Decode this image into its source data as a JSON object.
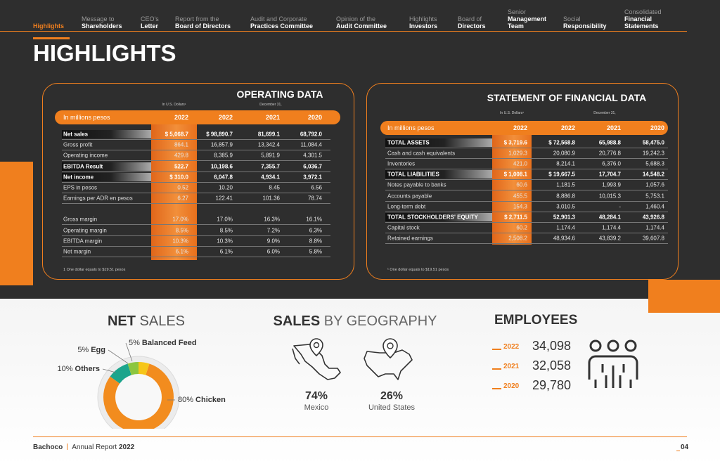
{
  "nav": {
    "items": [
      [
        "Highlights"
      ],
      [
        "Message to",
        "Shareholders"
      ],
      [
        "CEO's",
        "Letter"
      ],
      [
        "Report from the",
        "Board of Directors"
      ],
      [
        "Audit and Corporate",
        "Practices Committee"
      ],
      [
        "Opinion of the",
        "Audit Committee"
      ],
      [
        "Highlights",
        "Investors"
      ],
      [
        "Board of",
        "Directors"
      ],
      [
        "Senior",
        "Management",
        "Team"
      ],
      [
        "Social",
        "Responsibility"
      ],
      [
        "Consolidated",
        "Financial",
        "Statements"
      ]
    ]
  },
  "page_title": "HIGHLIGHTS",
  "operating_data": {
    "title": "OPERATING DATA",
    "usd_note": "In U.S. Dollars¹",
    "date_note": "December 31,",
    "header": [
      "In millions pesos",
      "2022",
      "2022",
      "2021",
      "2020"
    ],
    "groups": [
      [
        {
          "label": "Net sales",
          "cells": [
            "$ 5,068.7",
            "$ 98,890.7",
            "81,699.1",
            "68,792.0"
          ],
          "bold": true
        },
        {
          "label": "Gross profit",
          "cells": [
            "864.1",
            "16,857.9",
            "13,342.4",
            "11,084.4"
          ]
        },
        {
          "label": "Operating income",
          "cells": [
            "429.8",
            "8,385.9",
            "5,891.9",
            "4,301.5"
          ]
        },
        {
          "label": "EBITDA Result",
          "cells": [
            "522.7",
            "10,198.6",
            "7,355.7",
            "6,036.7"
          ],
          "bold": true
        },
        {
          "label": "Net income",
          "cells": [
            "$ 310.0",
            "6,047.8",
            "4,934.1",
            "3,972.1"
          ],
          "bold": true
        },
        {
          "label": "EPS in pesos",
          "cells": [
            "0.52",
            "10.20",
            "8.45",
            "6.56"
          ]
        },
        {
          "label": "Earnings per ADR en pesos",
          "cells": [
            "6.27",
            "122.41",
            "101.36",
            "78.74"
          ]
        }
      ],
      [
        {
          "label": "Gross margin",
          "cells": [
            "17.0%",
            "17.0%",
            "16.3%",
            "16.1%"
          ]
        },
        {
          "label": "Operating margin",
          "cells": [
            "8.5%",
            "8.5%",
            "7.2%",
            "6.3%"
          ]
        },
        {
          "label": "EBITDA margin",
          "cells": [
            "10.3%",
            "10.3%",
            "9.0%",
            "8.8%"
          ]
        },
        {
          "label": "Net margin",
          "cells": [
            "6.1%",
            "6.1%",
            "6.0%",
            "5.8%"
          ]
        }
      ]
    ],
    "footnote": "1 One dollar equals to $19.51 pesos"
  },
  "financial_data": {
    "title": "STATEMENT OF FINANCIAL DATA",
    "usd_note": "In U.S. Dollars¹",
    "date_note": "December 31,",
    "header": [
      "In millions pesos",
      "2022",
      "2022",
      "2021",
      "2020"
    ],
    "groups": [
      [
        {
          "label": "TOTAL ASSETS",
          "cells": [
            "$ 3,719.6",
            "$ 72,568.8",
            "65,988.8",
            "58,475.0"
          ],
          "bold": true
        },
        {
          "label": "Cash and cash equivalents",
          "cells": [
            "1,029.3",
            "20,080.9",
            "20,776.8",
            "19,242.3"
          ]
        },
        {
          "label": "Inventories",
          "cells": [
            "421.0",
            "8,214.1",
            "6,376.0",
            "5,688.3"
          ]
        },
        {
          "label": "TOTAL LIABILITIES",
          "cells": [
            "$ 1,008.1",
            "$ 19,667.5",
            "17,704.7",
            "14,548.2"
          ],
          "bold": true
        },
        {
          "label": "Notes payable to banks",
          "cells": [
            "60.6",
            "1,181.5",
            "1,993.9",
            "1,057.6"
          ]
        },
        {
          "label": "Accounts payable",
          "cells": [
            "455.5",
            "8,886.8",
            "10,015.3",
            "5,753.1"
          ]
        },
        {
          "label": "Long-term debt",
          "cells": [
            "154.3",
            "3,010.5",
            "-",
            "1,460.4"
          ]
        },
        {
          "label": "TOTAL STOCKHOLDERS' EQUITY",
          "cells": [
            "$ 2,711.5",
            "52,901.3",
            "48,284.1",
            "43,926.8"
          ],
          "bold": true
        },
        {
          "label": "Capital stock",
          "cells": [
            "60.2",
            "1,174.4",
            "1,174.4",
            "1,174.4"
          ]
        },
        {
          "label": "Retained earnings",
          "cells": [
            "2,508.2",
            "48,934.6",
            "43,839.2",
            "39,607.8"
          ]
        }
      ]
    ],
    "footnote": "¹ One dollar equals to $19.51 pesos"
  },
  "net_sales": {
    "type": "pie",
    "title_bold": "NET",
    "title_light": "SALES",
    "labels": [
      "Chicken",
      "Others",
      "Egg",
      "Balanced Feed"
    ],
    "values": [
      80,
      10,
      5,
      5
    ],
    "value_labels": [
      "80%",
      "10%",
      "5%",
      "5%"
    ],
    "colors": [
      "#f28c1e",
      "#1ba58c",
      "#8cc63f",
      "#f6c619"
    ]
  },
  "sales_by_geography": {
    "title_bold": "SALES",
    "title_light": "BY GEOGRAPHY",
    "regions": [
      {
        "percent": "74%",
        "name": "Mexico"
      },
      {
        "percent": "26%",
        "name": "United States"
      }
    ]
  },
  "employees": {
    "title": "EMPLOYEES",
    "rows": [
      {
        "year": "2022",
        "value": "34,098"
      },
      {
        "year": "2021",
        "value": "32,058"
      },
      {
        "year": "2020",
        "value": "29,780"
      }
    ]
  },
  "footer": {
    "brand": "Bachoco",
    "report": "Annual Report",
    "year": "2022",
    "page": "04"
  }
}
